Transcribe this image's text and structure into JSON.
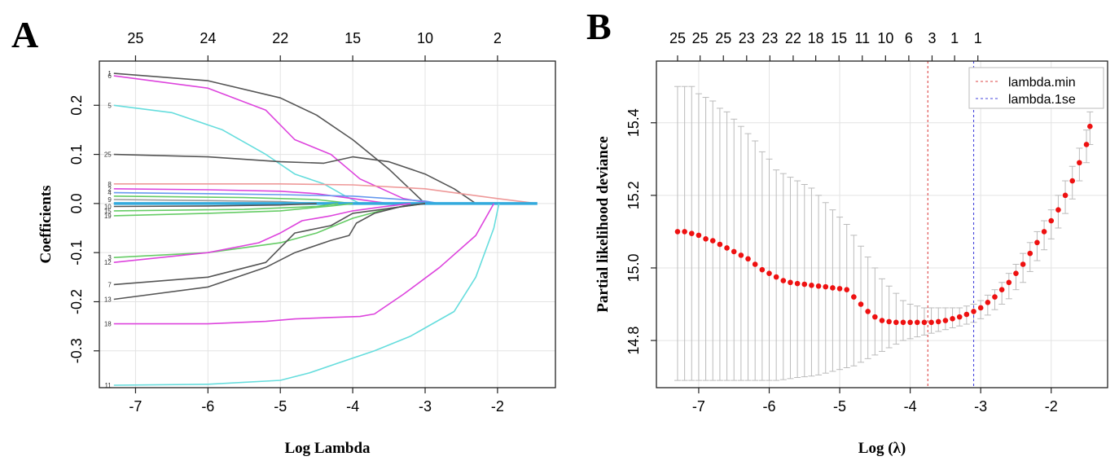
{
  "chart_data": [
    {
      "panel": "A",
      "type": "line",
      "xlabel": "Log Lambda",
      "ylabel": "Coefficients",
      "xlim": [
        -7.5,
        -1.2
      ],
      "ylim": [
        -0.375,
        0.29
      ],
      "x_ticks": [
        -7,
        -6,
        -5,
        -4,
        -3,
        -2
      ],
      "y_ticks": [
        -0.3,
        -0.2,
        -0.1,
        0.0,
        0.1,
        0.2
      ],
      "y_tick_labels": [
        "-0.3",
        "-0.2",
        "-0.1",
        "0.0",
        "0.1",
        "0.2"
      ],
      "top_ticks": [
        {
          "x": -7.0,
          "label": "25"
        },
        {
          "x": -6.0,
          "label": "24"
        },
        {
          "x": -5.0,
          "label": "22"
        },
        {
          "x": -4.0,
          "label": "15"
        },
        {
          "x": -3.0,
          "label": "10"
        },
        {
          "x": -2.0,
          "label": "2"
        }
      ],
      "grid": true,
      "series": [
        {
          "name": "1",
          "color": "#555555",
          "points": [
            [
              -7.3,
              0.265
            ],
            [
              -6,
              0.25
            ],
            [
              -5,
              0.215
            ],
            [
              -4.5,
              0.18
            ],
            [
              -4,
              0.13
            ],
            [
              -3.5,
              0.07
            ],
            [
              -3,
              0.0
            ]
          ]
        },
        {
          "name": "6",
          "color": "#dd44dd",
          "points": [
            [
              -7.3,
              0.26
            ],
            [
              -6,
              0.235
            ],
            [
              -5.2,
              0.19
            ],
            [
              -4.8,
              0.13
            ],
            [
              -4.3,
              0.1
            ],
            [
              -3.9,
              0.05
            ],
            [
              -3.3,
              0.01
            ],
            [
              -2.9,
              0.0
            ]
          ]
        },
        {
          "name": "5",
          "color": "#66dddd",
          "points": [
            [
              -7.3,
              0.2
            ],
            [
              -6.5,
              0.185
            ],
            [
              -5.8,
              0.15
            ],
            [
              -5.2,
              0.1
            ],
            [
              -4.8,
              0.06
            ],
            [
              -4.4,
              0.04
            ],
            [
              -4.1,
              0.015
            ],
            [
              -3.9,
              0.0
            ]
          ]
        },
        {
          "name": "25",
          "color": "#555555",
          "points": [
            [
              -7.3,
              0.1
            ],
            [
              -6,
              0.095
            ],
            [
              -5,
              0.085
            ],
            [
              -4.4,
              0.082
            ],
            [
              -4,
              0.095
            ],
            [
              -3.5,
              0.085
            ],
            [
              -3,
              0.06
            ],
            [
              -2.6,
              0.03
            ],
            [
              -2.3,
              0.0
            ]
          ]
        },
        {
          "name": "8",
          "color": "#ee9999",
          "points": [
            [
              -7.3,
              0.04
            ],
            [
              -6,
              0.04
            ],
            [
              -5,
              0.04
            ],
            [
              -4,
              0.038
            ],
            [
              -3,
              0.03
            ],
            [
              -2.5,
              0.02
            ],
            [
              -2,
              0.01
            ],
            [
              -1.45,
              0.0
            ]
          ]
        },
        {
          "name": "2",
          "color": "#dd44dd",
          "points": [
            [
              -7.3,
              0.03
            ],
            [
              -6,
              0.028
            ],
            [
              -5,
              0.025
            ],
            [
              -4.5,
              0.02
            ],
            [
              -4,
              0.01
            ],
            [
              -3.5,
              0.0
            ]
          ]
        },
        {
          "name": "4",
          "color": "#6699ee",
          "points": [
            [
              -7.3,
              0.022
            ],
            [
              -6,
              0.02
            ],
            [
              -5,
              0.018
            ],
            [
              -4,
              0.015
            ],
            [
              -3.5,
              0.01
            ],
            [
              -3,
              0.005
            ],
            [
              -2.8,
              0.0
            ]
          ]
        },
        {
          "name": "3b",
          "color": "#66cc66",
          "points": [
            [
              -7.3,
              0.015
            ],
            [
              -5.5,
              0.012
            ],
            [
              -4.5,
              0.008
            ],
            [
              -4,
              0.0
            ]
          ]
        },
        {
          "name": "9",
          "color": "#999999",
          "points": [
            [
              -7.3,
              0.008
            ],
            [
              -6,
              0.006
            ],
            [
              -5,
              0.004
            ],
            [
              -4.5,
              0.0
            ]
          ]
        },
        {
          "name": "0",
          "color": "#33aadd",
          "points": [
            [
              -7.3,
              0.0
            ],
            [
              -1.45,
              0.0
            ]
          ]
        },
        {
          "name": "10",
          "color": "#555555",
          "points": [
            [
              -7.3,
              -0.006
            ],
            [
              -6,
              -0.005
            ],
            [
              -5,
              -0.003
            ],
            [
              -4.5,
              0.0
            ]
          ]
        },
        {
          "name": "15",
          "color": "#66cc66",
          "points": [
            [
              -7.3,
              -0.015
            ],
            [
              -5.5,
              -0.012
            ],
            [
              -4.5,
              -0.006
            ],
            [
              -4.2,
              0.0
            ]
          ]
        },
        {
          "name": "19",
          "color": "#66cc66",
          "points": [
            [
              -7.3,
              -0.025
            ],
            [
              -6,
              -0.02
            ],
            [
              -5,
              -0.015
            ],
            [
              -4.3,
              -0.005
            ],
            [
              -4,
              0.0
            ]
          ]
        },
        {
          "name": "3",
          "color": "#66cc66",
          "points": [
            [
              -7.3,
              -0.11
            ],
            [
              -6,
              -0.1
            ],
            [
              -5,
              -0.08
            ],
            [
              -4.5,
              -0.06
            ],
            [
              -4,
              -0.03
            ],
            [
              -3.5,
              -0.01
            ],
            [
              -3,
              0.0
            ]
          ]
        },
        {
          "name": "12",
          "color": "#dd44dd",
          "points": [
            [
              -7.3,
              -0.12
            ],
            [
              -6,
              -0.1
            ],
            [
              -5.3,
              -0.08
            ],
            [
              -5,
              -0.06
            ],
            [
              -4.7,
              -0.035
            ],
            [
              -4.3,
              -0.025
            ],
            [
              -4,
              -0.015
            ],
            [
              -3.5,
              -0.005
            ],
            [
              -3.2,
              0.0
            ]
          ]
        },
        {
          "name": "7",
          "color": "#555555",
          "points": [
            [
              -7.3,
              -0.165
            ],
            [
              -6,
              -0.15
            ],
            [
              -5.2,
              -0.12
            ],
            [
              -4.8,
              -0.06
            ],
            [
              -4.3,
              -0.045
            ],
            [
              -4,
              -0.02
            ],
            [
              -3.5,
              -0.01
            ],
            [
              -3,
              0.0
            ]
          ]
        },
        {
          "name": "13",
          "color": "#555555",
          "points": [
            [
              -7.3,
              -0.195
            ],
            [
              -6,
              -0.17
            ],
            [
              -5.2,
              -0.13
            ],
            [
              -4.8,
              -0.1
            ],
            [
              -4.3,
              -0.075
            ],
            [
              -4.05,
              -0.065
            ],
            [
              -3.95,
              -0.04
            ],
            [
              -3.7,
              -0.02
            ],
            [
              -3.3,
              -0.005
            ],
            [
              -3,
              0.0
            ]
          ]
        },
        {
          "name": "18",
          "color": "#dd44dd",
          "points": [
            [
              -7.3,
              -0.245
            ],
            [
              -6,
              -0.245
            ],
            [
              -5.2,
              -0.24
            ],
            [
              -4.8,
              -0.235
            ],
            [
              -4.3,
              -0.232
            ],
            [
              -3.9,
              -0.23
            ],
            [
              -3.7,
              -0.225
            ],
            [
              -3.3,
              -0.185
            ],
            [
              -2.8,
              -0.13
            ],
            [
              -2.3,
              -0.065
            ],
            [
              -2.05,
              0.0
            ]
          ]
        },
        {
          "name": "11",
          "color": "#66dddd",
          "points": [
            [
              -7.3,
              -0.37
            ],
            [
              -6,
              -0.368
            ],
            [
              -5,
              -0.36
            ],
            [
              -4.6,
              -0.345
            ],
            [
              -4.2,
              -0.325
            ],
            [
              -3.7,
              -0.3
            ],
            [
              -3.2,
              -0.27
            ],
            [
              -2.6,
              -0.22
            ],
            [
              -2.3,
              -0.15
            ],
            [
              -2.05,
              -0.05
            ],
            [
              -1.98,
              0.0
            ]
          ]
        }
      ],
      "dotted_zero_range": [
        -7.3,
        -1.45
      ]
    },
    {
      "panel": "B",
      "type": "scatter",
      "xlabel": "Log (λ)",
      "ylabel": "Partial likelihood deviance",
      "xlim": [
        -7.6,
        -1.2
      ],
      "ylim": [
        14.67,
        15.57
      ],
      "x_ticks": [
        -7,
        -6,
        -5,
        -4,
        -3,
        -2
      ],
      "y_ticks": [
        14.8,
        15.0,
        15.2,
        15.4
      ],
      "y_tick_labels": [
        "14.8",
        "15.0",
        "15.2",
        "15.4"
      ],
      "top_ticks": [
        {
          "x": -7.3,
          "label": "25"
        },
        {
          "x": -6.98,
          "label": "25"
        },
        {
          "x": -6.65,
          "label": "25"
        },
        {
          "x": -6.32,
          "label": "23"
        },
        {
          "x": -5.99,
          "label": "23"
        },
        {
          "x": -5.66,
          "label": "22"
        },
        {
          "x": -5.34,
          "label": "18"
        },
        {
          "x": -5.01,
          "label": "15"
        },
        {
          "x": -4.68,
          "label": "11"
        },
        {
          "x": -4.35,
          "label": "10"
        },
        {
          "x": -4.02,
          "label": "6"
        },
        {
          "x": -3.69,
          "label": "3"
        },
        {
          "x": -3.37,
          "label": "1"
        },
        {
          "x": -3.04,
          "label": "1"
        }
      ],
      "grid": true,
      "point_color": "#ee1111",
      "errorbar_color": "#bbbbbb",
      "x": [
        -7.3,
        -7.2,
        -7.1,
        -7.0,
        -6.9,
        -6.8,
        -6.7,
        -6.6,
        -6.5,
        -6.4,
        -6.3,
        -6.2,
        -6.1,
        -6.0,
        -5.9,
        -5.8,
        -5.7,
        -5.6,
        -5.5,
        -5.4,
        -5.3,
        -5.2,
        -5.1,
        -5.0,
        -4.9,
        -4.8,
        -4.7,
        -4.6,
        -4.5,
        -4.4,
        -4.3,
        -4.2,
        -4.1,
        -4.0,
        -3.9,
        -3.8,
        -3.7,
        -3.6,
        -3.5,
        -3.4,
        -3.3,
        -3.2,
        -3.1,
        -3.0,
        -2.9,
        -2.8,
        -2.7,
        -2.6,
        -2.5,
        -2.4,
        -2.3,
        -2.2,
        -2.1,
        -2.0,
        -1.9,
        -1.8,
        -1.7,
        -1.6,
        -1.5,
        -1.45
      ],
      "y": [
        15.1,
        15.1,
        15.095,
        15.09,
        15.08,
        15.075,
        15.065,
        15.055,
        15.045,
        15.035,
        15.025,
        15.01,
        14.995,
        14.985,
        14.975,
        14.965,
        14.96,
        14.957,
        14.955,
        14.952,
        14.95,
        14.948,
        14.945,
        14.943,
        14.94,
        14.92,
        14.9,
        14.88,
        14.865,
        14.855,
        14.852,
        14.85,
        14.85,
        14.85,
        14.85,
        14.85,
        14.85,
        14.852,
        14.855,
        14.86,
        14.865,
        14.872,
        14.88,
        14.89,
        14.905,
        14.92,
        14.94,
        14.96,
        14.985,
        15.01,
        15.04,
        15.07,
        15.1,
        15.13,
        15.16,
        15.2,
        15.24,
        15.29,
        15.34,
        15.39
      ],
      "lower": [
        14.69,
        14.69,
        14.69,
        14.69,
        14.69,
        14.69,
        14.69,
        14.69,
        14.69,
        14.69,
        14.69,
        14.69,
        14.69,
        14.69,
        14.69,
        14.692,
        14.695,
        14.698,
        14.7,
        14.702,
        14.705,
        14.71,
        14.715,
        14.72,
        14.725,
        14.73,
        14.74,
        14.75,
        14.76,
        14.77,
        14.78,
        14.79,
        14.8,
        14.805,
        14.81,
        14.815,
        14.82,
        14.825,
        14.83,
        14.835,
        14.84,
        14.845,
        14.85,
        14.86,
        14.87,
        14.885,
        14.9,
        14.915,
        14.94,
        14.96,
        14.99,
        15.02,
        15.05,
        15.08,
        15.11,
        15.15,
        15.19,
        15.24,
        15.29,
        15.34
      ],
      "upper": [
        15.5,
        15.5,
        15.5,
        15.48,
        15.47,
        15.46,
        15.44,
        15.43,
        15.41,
        15.39,
        15.37,
        15.35,
        15.32,
        15.3,
        15.27,
        15.26,
        15.25,
        15.24,
        15.23,
        15.22,
        15.2,
        15.18,
        15.16,
        15.14,
        15.12,
        15.09,
        15.06,
        15.03,
        15.0,
        14.97,
        14.95,
        14.93,
        14.91,
        14.9,
        14.895,
        14.89,
        14.89,
        14.89,
        14.89,
        14.89,
        14.89,
        14.895,
        14.9,
        14.91,
        14.925,
        14.94,
        14.96,
        14.985,
        15.01,
        15.04,
        15.07,
        15.1,
        15.13,
        15.16,
        15.2,
        15.24,
        15.28,
        15.33,
        15.38,
        15.43
      ],
      "vlines": [
        {
          "name": "lambda.min",
          "x": -3.75,
          "color": "#dd4444"
        },
        {
          "name": "lambda.1se",
          "x": -3.1,
          "color": "#4444dd"
        }
      ],
      "legend_position": "top-right"
    }
  ],
  "panels": {
    "a_letter": "A",
    "b_letter": "B"
  }
}
